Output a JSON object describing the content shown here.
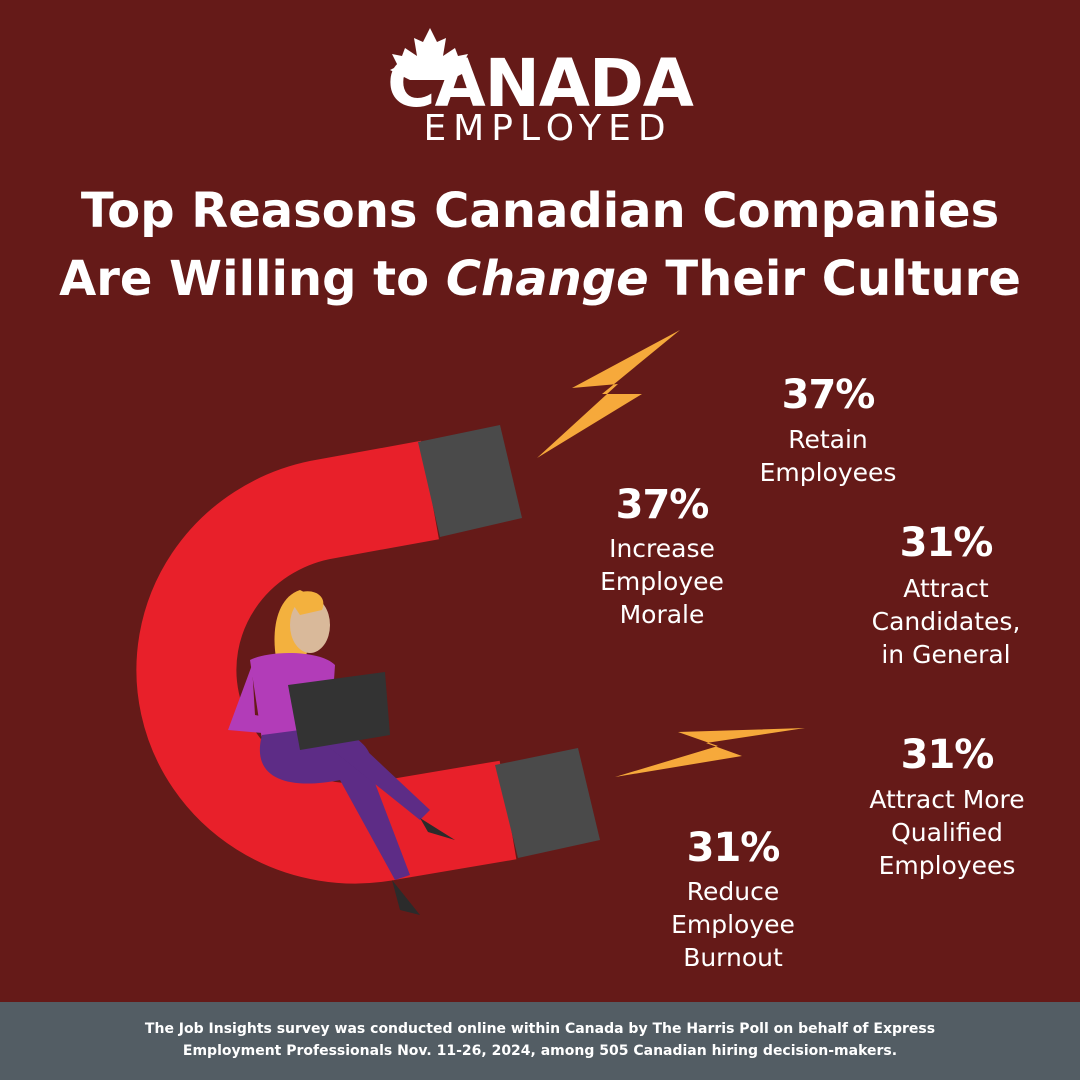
{
  "logo": {
    "name": "CANADA",
    "tagline": "EMPLOYED"
  },
  "title": {
    "line1": "Top Reasons Canadian Companies",
    "line2_start": "Are Willing to",
    "line2_emphasis": "Change",
    "line2_end": "Their Culture"
  },
  "stats": [
    {
      "percent": "37%",
      "label": [
        "Retain",
        "Employees"
      ]
    },
    {
      "percent": "37%",
      "label": [
        "Increase",
        "Employee",
        "Morale"
      ]
    },
    {
      "percent": "31%",
      "label": [
        "Attract",
        "Candidates,",
        "in General"
      ]
    },
    {
      "percent": "31%",
      "label": [
        "Attract More",
        "Qualified",
        "Employees"
      ]
    },
    {
      "percent": "31%",
      "label": [
        "Reduce",
        "Employee",
        "Burnout"
      ]
    }
  ],
  "footer": [
    "The Job Insights survey was conducted online within Canada by The Harris Poll on behalf of Express",
    "Employment Professionals Nov. 11-26, 2024, among 505 Canadian hiring decision-makers."
  ]
}
